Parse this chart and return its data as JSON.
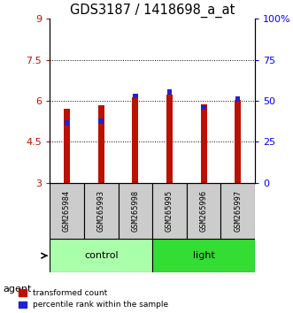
{
  "title": "GDS3187 / 1418698_a_at",
  "samples": [
    "GSM265984",
    "GSM265993",
    "GSM265998",
    "GSM265995",
    "GSM265996",
    "GSM265997"
  ],
  "red_values": [
    5.72,
    5.85,
    6.12,
    6.22,
    5.88,
    6.02
  ],
  "blue_values": [
    5.18,
    5.25,
    6.17,
    6.32,
    5.75,
    6.07
  ],
  "red_base": 3.0,
  "ylim_left": [
    3,
    9
  ],
  "ylim_right": [
    0,
    100
  ],
  "yticks_left": [
    3,
    4.5,
    6,
    7.5,
    9
  ],
  "yticks_right": [
    0,
    25,
    50,
    75,
    100
  ],
  "ytick_labels_right": [
    "0",
    "25",
    "50",
    "75",
    "100%"
  ],
  "grid_values": [
    4.5,
    6.0,
    7.5
  ],
  "groups": [
    {
      "label": "control",
      "indices": [
        0,
        1,
        2
      ],
      "color": "#aaffaa"
    },
    {
      "label": "light",
      "indices": [
        3,
        4,
        5
      ],
      "color": "#33dd33"
    }
  ],
  "red_color": "#bb1100",
  "blue_color": "#2222cc",
  "bar_bg_color": "#cccccc",
  "legend_red_label": "transformed count",
  "legend_blue_label": "percentile rank within the sample",
  "agent_label": "agent",
  "red_bar_width": 0.18,
  "blue_bar_width": 0.14,
  "title_fontsize": 10.5,
  "tick_fontsize": 8
}
